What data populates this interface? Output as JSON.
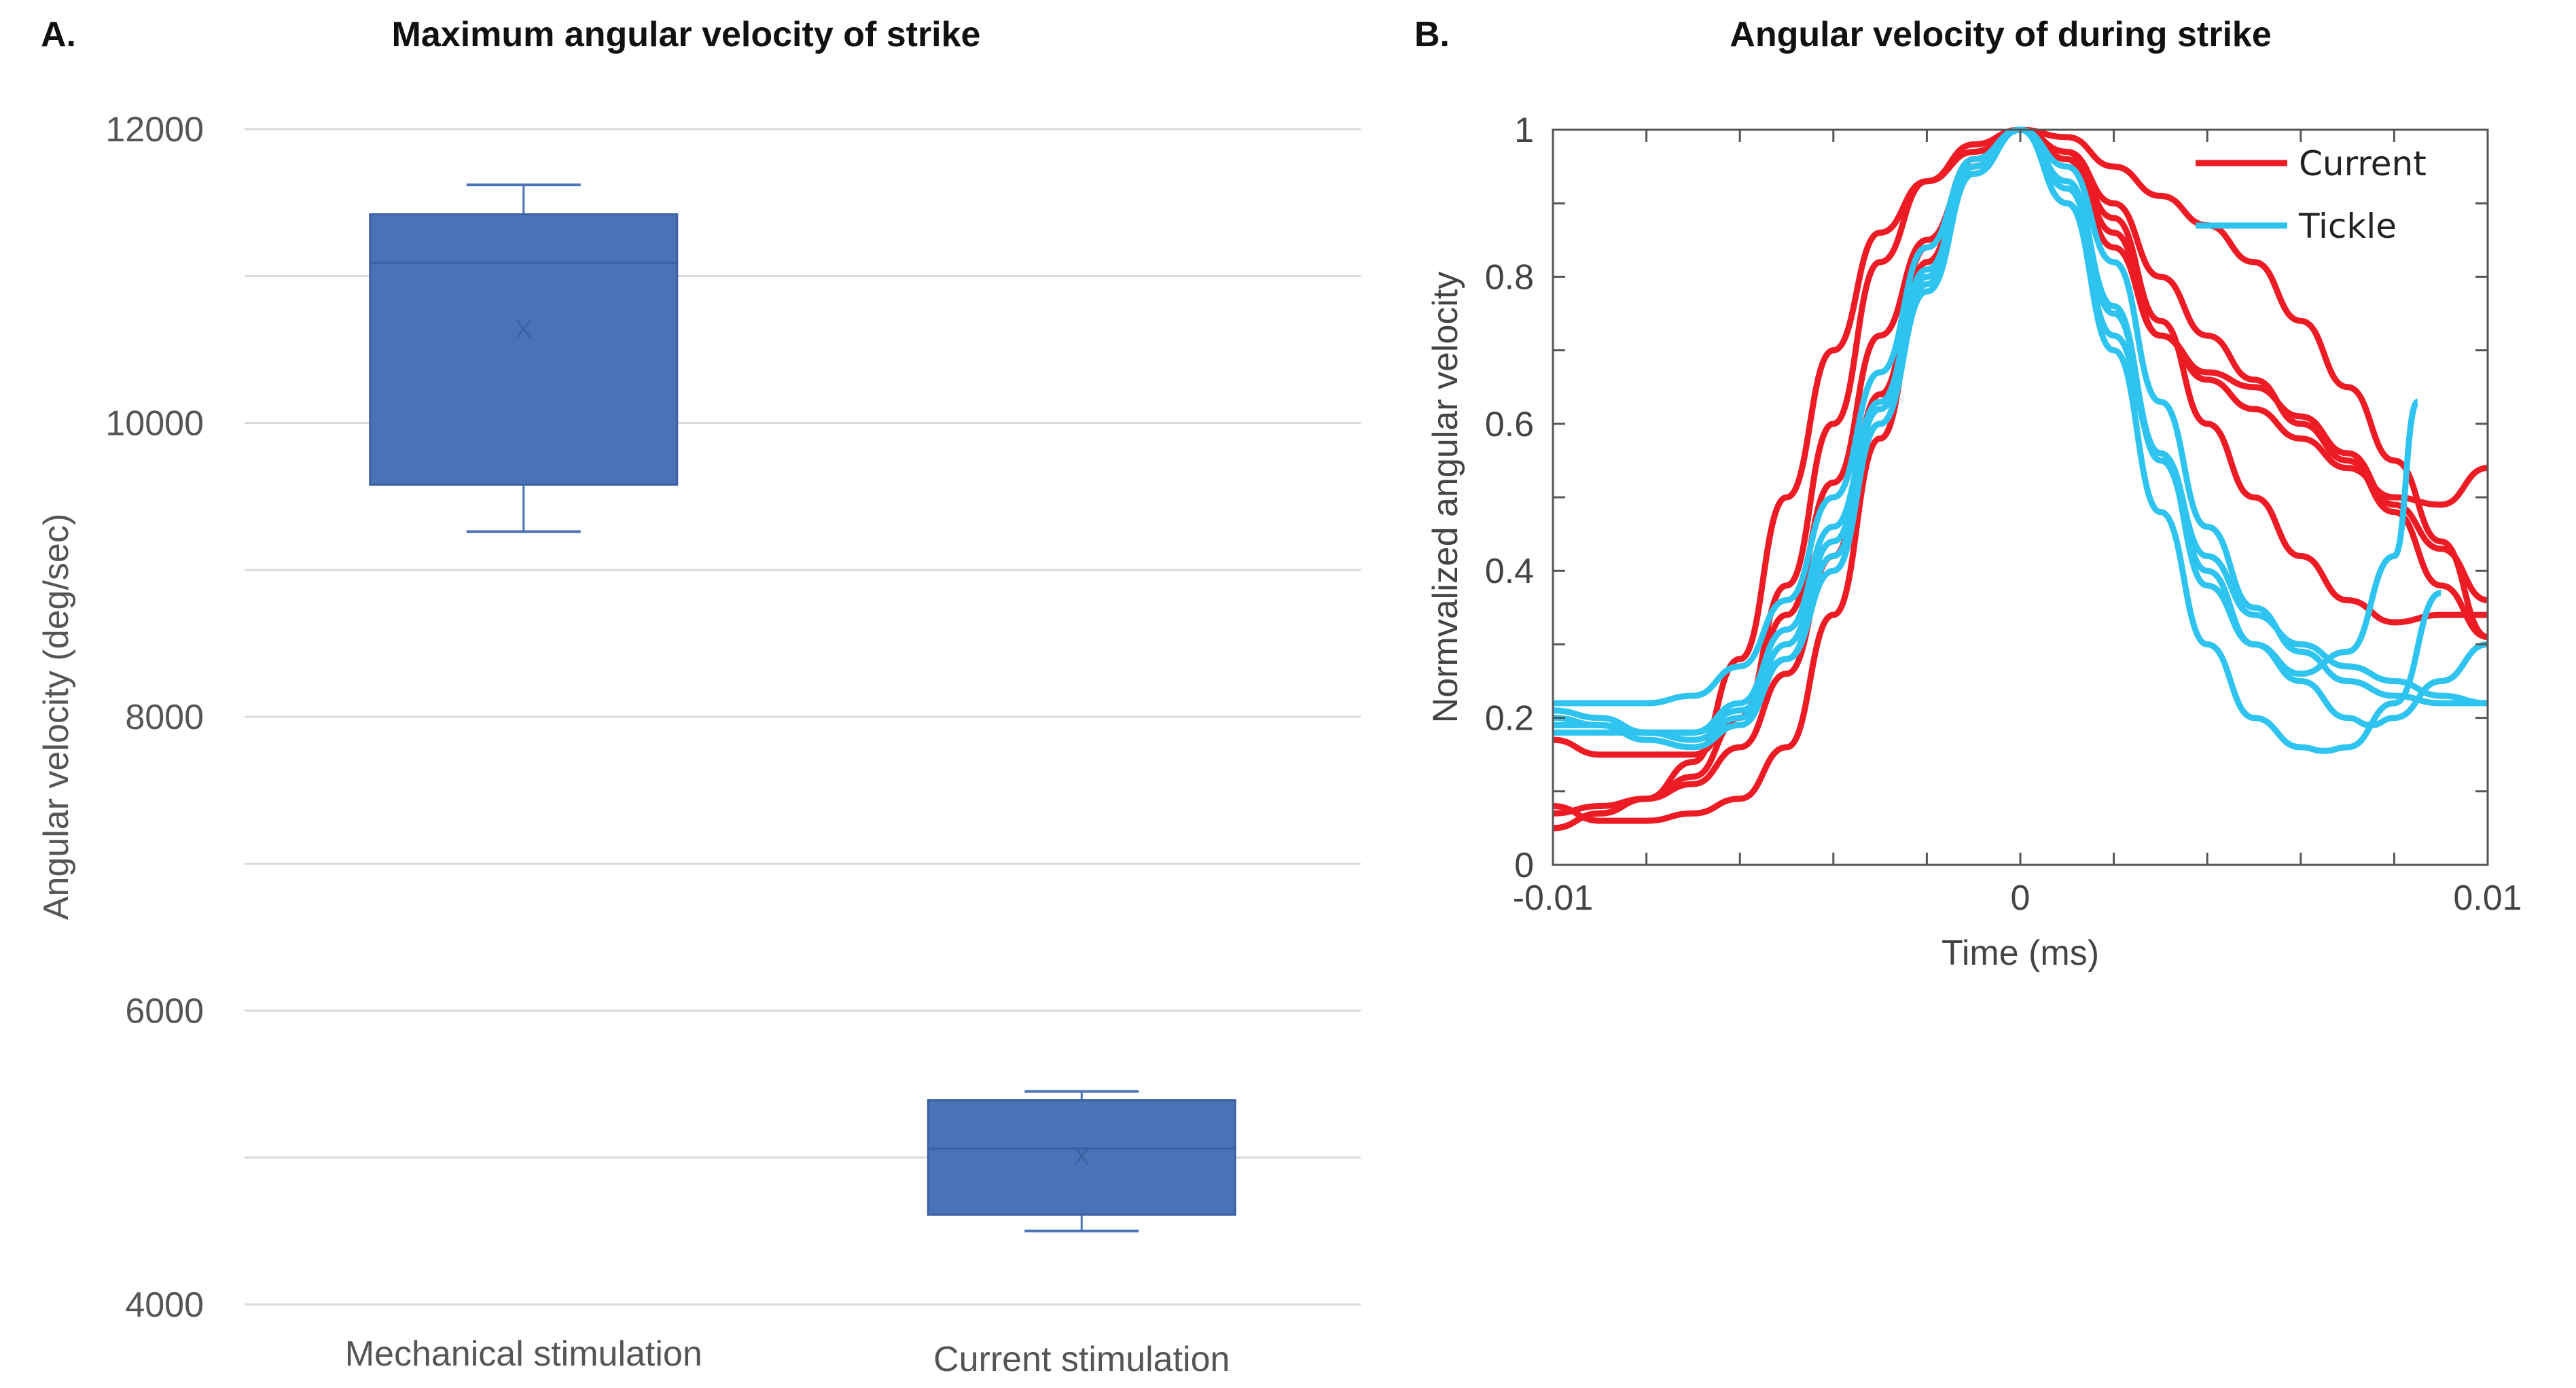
{
  "chart_data": [
    {
      "panel": "A.",
      "type": "box",
      "title": "Maximum angular velocity of strike",
      "xlabel": "",
      "ylabel": "Angular velocity (deg/sec)",
      "ylim": [
        4000,
        12000
      ],
      "yticks": [
        4000,
        6000,
        8000,
        10000,
        12000
      ],
      "grid_step": 1000,
      "grid": true,
      "color": "#4a72b6",
      "categories": [
        "Mechanical stimulation",
        "Current stimulation"
      ],
      "boxes": [
        {
          "name": "Mechanical stimulation",
          "whisker_low": 9260,
          "q1": 9580,
          "median": 11090,
          "q3": 11420,
          "whisker_high": 11620,
          "mean": 10640
        },
        {
          "name": "Current stimulation",
          "whisker_low": 4500,
          "q1": 4610,
          "median": 5060,
          "q3": 5390,
          "whisker_high": 5450,
          "mean": 5010
        }
      ]
    },
    {
      "panel": "B.",
      "type": "line",
      "title": "Angular velocity of during strike",
      "xlabel": "Time (ms)",
      "ylabel": "Normvalized angular velocity",
      "xlim": [
        -0.01,
        0.01
      ],
      "ylim": [
        0,
        1
      ],
      "xticks": [
        -0.01,
        0,
        0.01
      ],
      "xtick_labels": [
        "-0.01",
        "0",
        "0.01"
      ],
      "yticks": [
        0,
        0.2,
        0.4,
        0.6,
        0.8,
        1
      ],
      "ytick_labels": [
        "0",
        "0.2",
        "0.4",
        "0.6",
        "0.8",
        "1"
      ],
      "minor_x_step": 0.002,
      "minor_y_step": 0.1,
      "grid": false,
      "legend": {
        "placement": "top-right",
        "entries": [
          {
            "label": "Current",
            "color": "#ed1c24"
          },
          {
            "label": "Tickle",
            "color": "#2ec4ef"
          }
        ]
      },
      "series": [
        {
          "name": "Current",
          "color": "#ed1c24",
          "x": [
            -0.01,
            -0.009,
            -0.008,
            -0.007,
            -0.006,
            -0.005,
            -0.004,
            -0.003,
            -0.002,
            -0.001,
            0,
            0.001,
            0.002,
            0.003,
            0.004,
            0.005,
            0.006,
            0.007,
            0.008,
            0.009,
            0.01
          ],
          "y": [
            0.17,
            0.15,
            0.15,
            0.15,
            0.2,
            0.38,
            0.6,
            0.82,
            0.93,
            0.98,
            1,
            0.99,
            0.95,
            0.91,
            0.87,
            0.82,
            0.74,
            0.65,
            0.55,
            0.44,
            0.31
          ]
        },
        {
          "name": "Current",
          "color": "#ed1c24",
          "x": [
            -0.01,
            -0.009,
            -0.008,
            -0.007,
            -0.006,
            -0.005,
            -0.004,
            -0.003,
            -0.002,
            -0.001,
            0,
            0.001,
            0.002,
            0.003,
            0.004,
            0.005,
            0.006,
            0.007,
            0.008,
            0.009,
            0.01
          ],
          "y": [
            0.07,
            0.08,
            0.09,
            0.12,
            0.2,
            0.34,
            0.52,
            0.72,
            0.85,
            0.95,
            1,
            0.96,
            0.84,
            0.72,
            0.67,
            0.65,
            0.61,
            0.56,
            0.49,
            0.43,
            0.36
          ]
        },
        {
          "name": "Current",
          "color": "#ed1c24",
          "x": [
            -0.01,
            -0.009,
            -0.008,
            -0.007,
            -0.006,
            -0.005,
            -0.004,
            -0.003,
            -0.002,
            -0.001,
            0,
            0.001,
            0.002,
            0.003,
            0.004,
            0.005,
            0.006,
            0.007,
            0.008,
            0.009,
            0.01
          ],
          "y": [
            0.05,
            0.07,
            0.09,
            0.11,
            0.16,
            0.26,
            0.42,
            0.64,
            0.84,
            0.96,
            1,
            0.97,
            0.86,
            0.72,
            0.66,
            0.62,
            0.58,
            0.54,
            0.5,
            0.49,
            0.54
          ]
        },
        {
          "name": "Current",
          "color": "#ed1c24",
          "x": [
            -0.01,
            -0.009,
            -0.008,
            -0.007,
            -0.006,
            -0.005,
            -0.004,
            -0.003,
            -0.002,
            -0.001,
            0,
            0.001,
            0.002,
            0.003,
            0.004,
            0.005,
            0.006,
            0.007,
            0.008,
            0.009,
            0.01
          ],
          "y": [
            0.08,
            0.06,
            0.06,
            0.07,
            0.09,
            0.16,
            0.34,
            0.58,
            0.82,
            0.96,
            1,
            0.97,
            0.88,
            0.74,
            0.6,
            0.5,
            0.42,
            0.36,
            0.33,
            0.34,
            0.34
          ]
        },
        {
          "name": "Current",
          "color": "#ed1c24",
          "x": [
            -0.01,
            -0.009,
            -0.008,
            -0.007,
            -0.006,
            -0.005,
            -0.004,
            -0.003,
            -0.002,
            -0.001,
            0,
            0.001,
            0.002,
            0.003,
            0.004,
            0.005,
            0.006,
            0.007,
            0.008,
            0.009,
            0.01
          ],
          "y": [
            0.05,
            0.07,
            0.09,
            0.14,
            0.28,
            0.5,
            0.7,
            0.86,
            0.93,
            0.97,
            1,
            0.97,
            0.9,
            0.8,
            0.72,
            0.66,
            0.6,
            0.55,
            0.48,
            0.38,
            0.31
          ]
        },
        {
          "name": "Tickle",
          "color": "#2ec4ef",
          "x": [
            -0.01,
            -0.009,
            -0.008,
            -0.007,
            -0.006,
            -0.005,
            -0.004,
            -0.003,
            -0.002,
            -0.001,
            0,
            0.001,
            0.002,
            0.003,
            0.004,
            0.005,
            0.006,
            0.007,
            0.008,
            0.0085
          ],
          "y": [
            0.22,
            0.22,
            0.22,
            0.23,
            0.27,
            0.36,
            0.5,
            0.67,
            0.84,
            0.96,
            1,
            0.93,
            0.76,
            0.55,
            0.4,
            0.3,
            0.26,
            0.29,
            0.42,
            0.63
          ]
        },
        {
          "name": "Tickle",
          "color": "#2ec4ef",
          "x": [
            -0.01,
            -0.009,
            -0.008,
            -0.007,
            -0.006,
            -0.005,
            -0.004,
            -0.003,
            -0.002,
            -0.001,
            0,
            0.001,
            0.002,
            0.003,
            0.004,
            0.005,
            0.006,
            0.0065,
            0.007,
            0.008,
            0.009
          ],
          "y": [
            0.21,
            0.2,
            0.18,
            0.17,
            0.2,
            0.3,
            0.44,
            0.62,
            0.8,
            0.94,
            1,
            0.9,
            0.7,
            0.48,
            0.3,
            0.2,
            0.16,
            0.155,
            0.16,
            0.22,
            0.37
          ]
        },
        {
          "name": "Tickle",
          "color": "#2ec4ef",
          "x": [
            -0.01,
            -0.009,
            -0.008,
            -0.007,
            -0.006,
            -0.005,
            -0.004,
            -0.003,
            -0.002,
            -0.001,
            0,
            0.001,
            0.002,
            0.003,
            0.004,
            0.005,
            0.006,
            0.007,
            0.008,
            0.009,
            0.01
          ],
          "y": [
            0.19,
            0.19,
            0.18,
            0.18,
            0.22,
            0.32,
            0.46,
            0.63,
            0.81,
            0.95,
            1,
            0.95,
            0.82,
            0.63,
            0.46,
            0.35,
            0.29,
            0.25,
            0.23,
            0.22,
            0.22
          ]
        },
        {
          "name": "Tickle",
          "color": "#2ec4ef",
          "x": [
            -0.01,
            -0.009,
            -0.008,
            -0.007,
            -0.006,
            -0.005,
            -0.004,
            -0.003,
            -0.002,
            -0.001,
            0,
            0.001,
            0.002,
            0.003,
            0.004,
            0.005,
            0.006,
            0.007,
            0.0075,
            0.008,
            0.009,
            0.01
          ],
          "y": [
            0.18,
            0.18,
            0.18,
            0.18,
            0.21,
            0.28,
            0.4,
            0.6,
            0.78,
            0.94,
            1,
            0.92,
            0.75,
            0.56,
            0.38,
            0.3,
            0.25,
            0.2,
            0.19,
            0.2,
            0.25,
            0.3
          ]
        },
        {
          "name": "Tickle",
          "color": "#2ec4ef",
          "x": [
            -0.01,
            -0.009,
            -0.008,
            -0.007,
            -0.006,
            -0.005,
            -0.004,
            -0.003,
            -0.002,
            -0.001,
            0,
            0.001,
            0.002,
            0.003,
            0.004,
            0.005,
            0.006,
            0.007,
            0.008,
            0.009,
            0.01
          ],
          "y": [
            0.2,
            0.19,
            0.17,
            0.16,
            0.19,
            0.28,
            0.42,
            0.6,
            0.79,
            0.94,
            1,
            0.9,
            0.72,
            0.56,
            0.42,
            0.34,
            0.3,
            0.27,
            0.25,
            0.23,
            0.22
          ]
        }
      ]
    }
  ]
}
